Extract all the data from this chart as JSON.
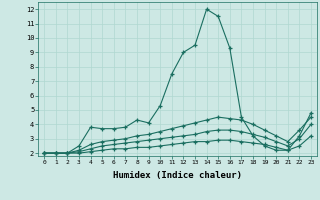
{
  "xlabel": "Humidex (Indice chaleur)",
  "background_color": "#cde8e4",
  "grid_color": "#b0d8d0",
  "line_color": "#1a6e60",
  "x": [
    0,
    1,
    2,
    3,
    4,
    5,
    6,
    7,
    8,
    9,
    10,
    11,
    12,
    13,
    14,
    15,
    16,
    17,
    18,
    19,
    20,
    21,
    22,
    23
  ],
  "line1": [
    2,
    2,
    2,
    2.5,
    3.8,
    3.7,
    3.7,
    3.8,
    4.3,
    4.1,
    5.3,
    7.5,
    9.0,
    9.5,
    12.0,
    11.5,
    9.3,
    4.5,
    3.2,
    2.5,
    2.2,
    2.2,
    3.2,
    4.8
  ],
  "line2": [
    2,
    2,
    2,
    2.2,
    2.6,
    2.8,
    2.9,
    3.0,
    3.2,
    3.3,
    3.5,
    3.7,
    3.9,
    4.1,
    4.3,
    4.5,
    4.4,
    4.3,
    4.0,
    3.6,
    3.2,
    2.8,
    3.6,
    4.5
  ],
  "line3": [
    2,
    2,
    2,
    2.1,
    2.3,
    2.5,
    2.6,
    2.7,
    2.8,
    2.9,
    3.0,
    3.1,
    3.2,
    3.3,
    3.5,
    3.6,
    3.6,
    3.5,
    3.3,
    3.1,
    2.8,
    2.5,
    3.0,
    4.0
  ],
  "line4": [
    2,
    2,
    2,
    2.0,
    2.1,
    2.2,
    2.3,
    2.3,
    2.4,
    2.4,
    2.5,
    2.6,
    2.7,
    2.8,
    2.8,
    2.9,
    2.9,
    2.8,
    2.7,
    2.6,
    2.4,
    2.2,
    2.5,
    3.2
  ],
  "xlim": [
    -0.5,
    23.5
  ],
  "ylim": [
    1.8,
    12.5
  ],
  "yticks": [
    2,
    3,
    4,
    5,
    6,
    7,
    8,
    9,
    10,
    11,
    12
  ],
  "xticks": [
    0,
    1,
    2,
    3,
    4,
    5,
    6,
    7,
    8,
    9,
    10,
    11,
    12,
    13,
    14,
    15,
    16,
    17,
    18,
    19,
    20,
    21,
    22,
    23
  ]
}
